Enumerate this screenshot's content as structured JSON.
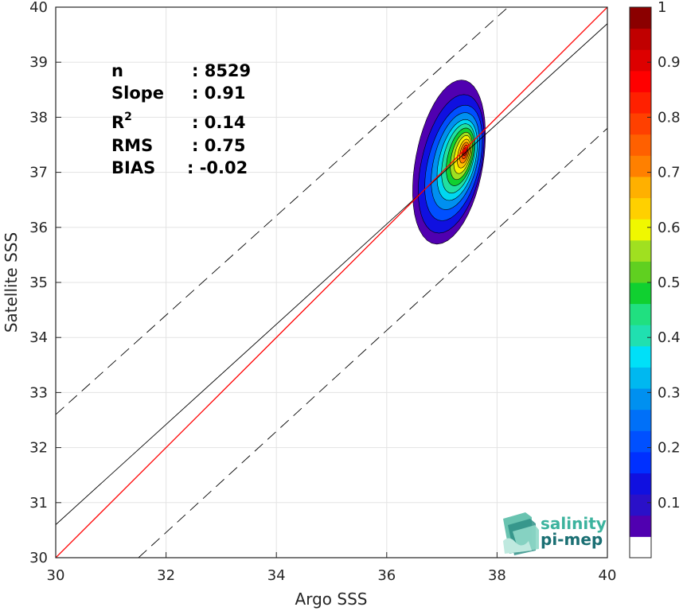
{
  "chart_data": {
    "type": "contour",
    "xlabel": "Argo SSS",
    "ylabel": "Satellite SSS",
    "xlim": [
      30,
      40
    ],
    "ylim": [
      30,
      40
    ],
    "xticks": [
      "30",
      "32",
      "34",
      "36",
      "38",
      "40"
    ],
    "yticks": [
      "30",
      "31",
      "32",
      "33",
      "34",
      "35",
      "36",
      "37",
      "38",
      "39",
      "40"
    ],
    "grid": true,
    "stats": [
      {
        "label": "n",
        "value": ": 8529"
      },
      {
        "label": "Slope",
        "value": ": 0.91"
      },
      {
        "label": "R",
        "sup": "2",
        "value": ": 0.14"
      },
      {
        "label": "RMS",
        "value": ": 0.75"
      },
      {
        "label": "BIAS",
        "value": ": -0.02"
      }
    ],
    "identity_line": {
      "x": [
        30,
        40
      ],
      "y": [
        30,
        40
      ],
      "color": "#ff0000"
    },
    "fit_line": {
      "x": [
        30,
        40
      ],
      "y": [
        30.6,
        39.7
      ],
      "color": "#000000"
    },
    "bound_lines": [
      {
        "x": [
          30,
          38.2
        ],
        "y": [
          32.6,
          40.0
        ]
      },
      {
        "x": [
          31.5,
          40
        ],
        "y": [
          30,
          37.8
        ]
      }
    ],
    "density": {
      "center": [
        37.42,
        37.38
      ],
      "levels": [
        {
          "level": 0.05,
          "color": "#5000b0",
          "cx": 37.15,
          "cy": 37.3,
          "rx": 0.65,
          "ry": 1.42,
          "tilt": 0.15
        },
        {
          "level": 0.15,
          "color": "#1010e0",
          "cx": 37.19,
          "cy": 37.25,
          "rx": 0.58,
          "ry": 1.2,
          "tilt": 0.18
        },
        {
          "level": 0.2,
          "color": "#0050ff",
          "cx": 37.23,
          "cy": 37.25,
          "rx": 0.5,
          "ry": 1.0,
          "tilt": 0.2
        },
        {
          "level": 0.3,
          "color": "#0090f0",
          "cx": 37.26,
          "cy": 37.27,
          "rx": 0.42,
          "ry": 0.84,
          "tilt": 0.2
        },
        {
          "level": 0.35,
          "color": "#00d8f0",
          "cx": 37.29,
          "cy": 37.28,
          "rx": 0.35,
          "ry": 0.7,
          "tilt": 0.2
        },
        {
          "level": 0.45,
          "color": "#20e0a0",
          "cx": 37.31,
          "cy": 37.3,
          "rx": 0.29,
          "ry": 0.6,
          "tilt": 0.2
        },
        {
          "level": 0.5,
          "color": "#10d030",
          "cx": 37.34,
          "cy": 37.32,
          "rx": 0.24,
          "ry": 0.5,
          "tilt": 0.2
        },
        {
          "level": 0.6,
          "color": "#a0e020",
          "cx": 37.36,
          "cy": 37.33,
          "rx": 0.19,
          "ry": 0.41,
          "tilt": 0.2
        },
        {
          "level": 0.65,
          "color": "#f8f000",
          "cx": 37.38,
          "cy": 37.35,
          "rx": 0.15,
          "ry": 0.33,
          "tilt": 0.2
        },
        {
          "level": 0.7,
          "color": "#ffc000",
          "cx": 37.4,
          "cy": 37.36,
          "rx": 0.11,
          "ry": 0.25,
          "tilt": 0.2
        },
        {
          "level": 0.8,
          "color": "#ff8000",
          "cx": 37.41,
          "cy": 37.37,
          "rx": 0.08,
          "ry": 0.18,
          "tilt": 0.2
        },
        {
          "level": 0.85,
          "color": "#ff4000",
          "cx": 37.42,
          "cy": 37.38,
          "rx": 0.05,
          "ry": 0.12,
          "tilt": 0.2
        },
        {
          "level": 0.95,
          "color": "#dd0000",
          "cx": 37.42,
          "cy": 37.38,
          "rx": 0.03,
          "ry": 0.07,
          "tilt": 0.2
        }
      ]
    },
    "colorbar": {
      "colors": [
        "#ffffff",
        "#5000b0",
        "#2a10c8",
        "#1010e0",
        "#0030ff",
        "#0050ff",
        "#0070f8",
        "#0090f0",
        "#00b8f0",
        "#00e0f8",
        "#20e0b0",
        "#20e080",
        "#10d030",
        "#60d020",
        "#a0e020",
        "#f0f800",
        "#ffd000",
        "#ffb000",
        "#ff8000",
        "#ff6000",
        "#ff4000",
        "#ff2000",
        "#ff0000",
        "#dd0000",
        "#c00000",
        "#8b0000"
      ],
      "ticks": [
        "0.1",
        "0.2",
        "0.3",
        "0.4",
        "0.5",
        "0.6",
        "0.7",
        "0.8",
        "0.9",
        "1"
      ],
      "tick_values": [
        0.1,
        0.2,
        0.3,
        0.4,
        0.5,
        0.6,
        0.7,
        0.8,
        0.9,
        1.0
      ]
    }
  },
  "logo": {
    "line1": "salinity",
    "line2": "pi-mep",
    "color1": "#3cb39e",
    "color2": "#1a6f73"
  }
}
